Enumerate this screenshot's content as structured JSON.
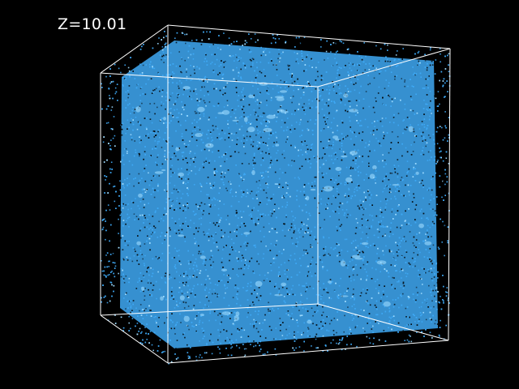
{
  "redshift_label": "Z=10.01",
  "colors": {
    "background": "#000000",
    "particles": "#3fa9f5",
    "particles_dense": "#9fdcff",
    "box_edges": "#ffffff"
  }
}
